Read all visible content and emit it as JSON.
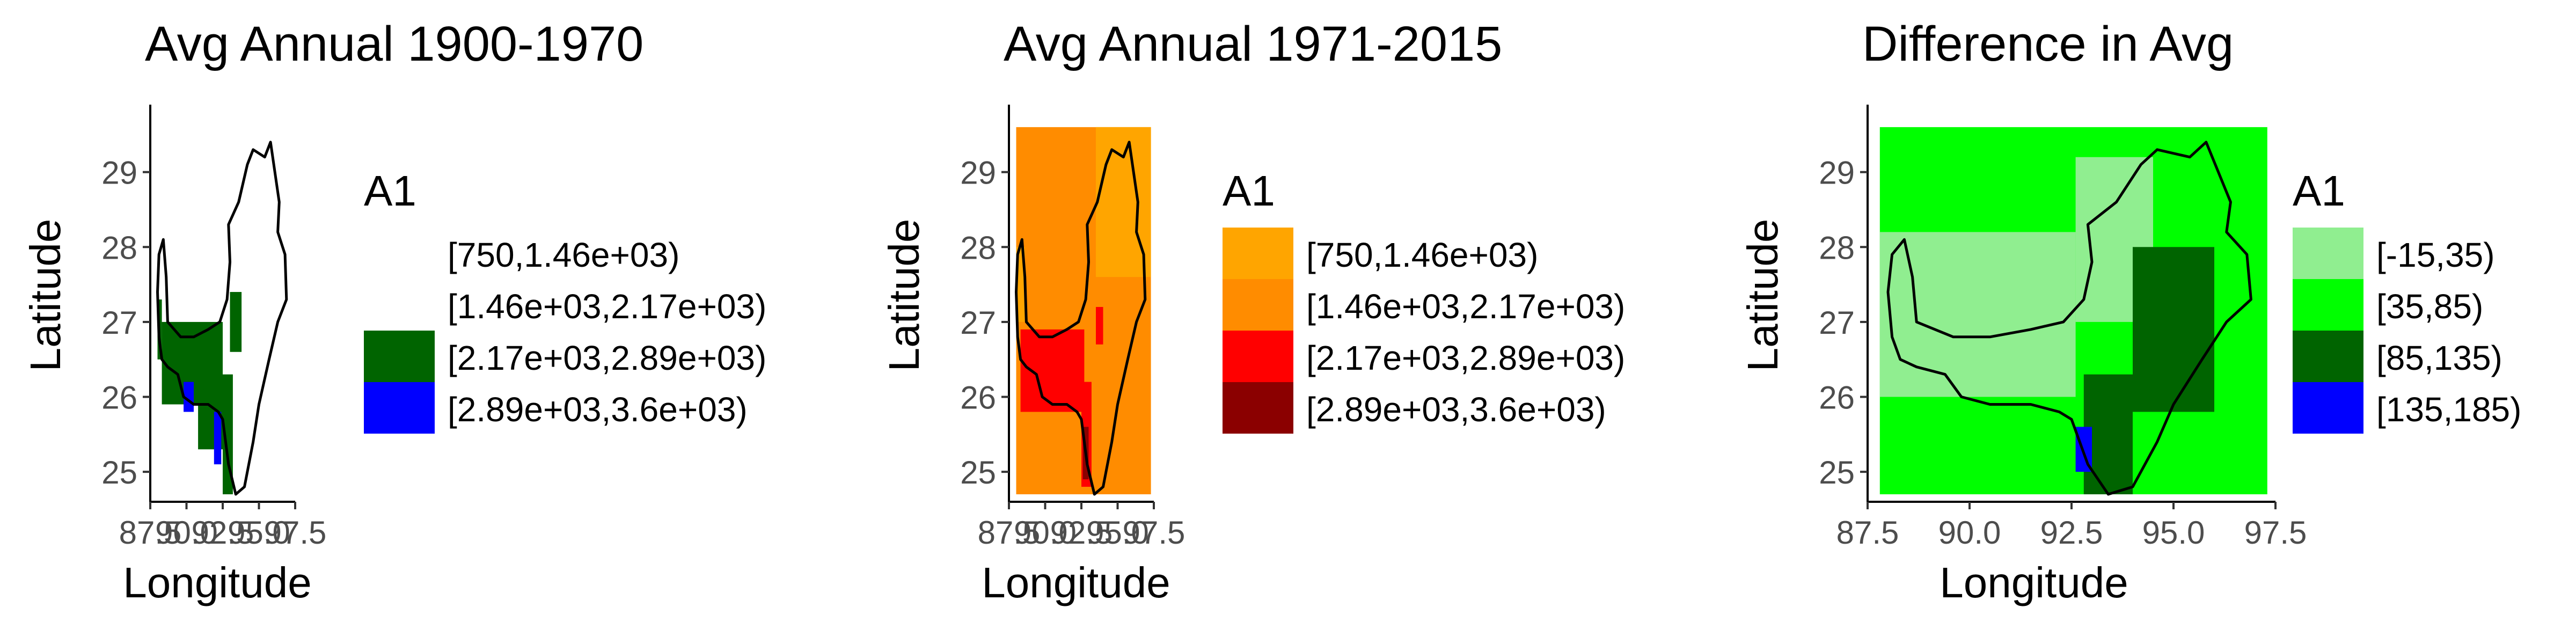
{
  "chart_data": [
    {
      "type": "heatmap",
      "title": "Avg Annual 1900-1970",
      "xlabel": "Longitude",
      "ylabel": "Latitude",
      "xticks": [
        "87.5",
        "90.0",
        "92.5",
        "95.0",
        "97.5"
      ],
      "yticks": [
        "25",
        "26",
        "27",
        "28",
        "29"
      ],
      "xlim": [
        87.5,
        97.5
      ],
      "ylim": [
        24.6,
        29.9
      ],
      "legend": {
        "title": "A1",
        "position": "right",
        "items": [
          {
            "label": "[750,1.46e+03)",
            "color": "#ffffff"
          },
          {
            "label": "[1.46e+03,2.17e+03)",
            "color": "#ffffff"
          },
          {
            "label": "[2.17e+03,2.89e+03)",
            "color": "#006400"
          },
          {
            "label": "[2.89e+03,3.6e+03)",
            "color": "#0000ff"
          }
        ]
      },
      "regions": [
        {
          "class": 2,
          "lon": [
            88.0,
            88.3
          ],
          "lat": [
            26.5,
            27.3
          ]
        },
        {
          "class": 2,
          "lon": [
            88.3,
            92.5
          ],
          "lat": [
            25.9,
            27.0
          ]
        },
        {
          "class": 2,
          "lon": [
            90.8,
            92.5
          ],
          "lat": [
            25.3,
            26.0
          ]
        },
        {
          "class": 2,
          "lon": [
            92.5,
            93.2
          ],
          "lat": [
            24.7,
            26.3
          ]
        },
        {
          "class": 2,
          "lon": [
            93.0,
            93.8
          ],
          "lat": [
            26.6,
            27.4
          ]
        },
        {
          "class": 2,
          "lon": [
            90.9,
            91.2
          ],
          "lat": [
            26.1,
            26.6
          ]
        },
        {
          "class": 3,
          "lon": [
            89.8,
            90.5
          ],
          "lat": [
            25.8,
            26.2
          ]
        },
        {
          "class": 3,
          "lon": [
            91.9,
            92.4
          ],
          "lat": [
            25.1,
            25.8
          ]
        }
      ]
    },
    {
      "type": "heatmap",
      "title": "Avg Annual 1971-2015",
      "xlabel": "Longitude",
      "ylabel": "Latitude",
      "xticks": [
        "87.5",
        "90.0",
        "92.5",
        "95.0",
        "97.5"
      ],
      "yticks": [
        "25",
        "26",
        "27",
        "28",
        "29"
      ],
      "xlim": [
        87.5,
        97.5
      ],
      "ylim": [
        24.6,
        29.9
      ],
      "legend": {
        "title": "A1",
        "position": "right",
        "items": [
          {
            "label": "[750,1.46e+03)",
            "color": "#ffa500"
          },
          {
            "label": "[1.46e+03,2.17e+03)",
            "color": "#ff8c00"
          },
          {
            "label": "[2.17e+03,2.89e+03)",
            "color": "#ff0000"
          },
          {
            "label": "[2.89e+03,3.6e+03)",
            "color": "#8b0000"
          }
        ]
      },
      "regions": [
        {
          "class": 1,
          "lon": [
            88.0,
            97.3
          ],
          "lat": [
            24.7,
            29.6
          ]
        },
        {
          "class": 0,
          "lon": [
            93.5,
            97.3
          ],
          "lat": [
            27.6,
            29.6
          ]
        },
        {
          "class": 0,
          "lon": [
            88.0,
            88.6
          ],
          "lat": [
            27.0,
            28.0
          ]
        },
        {
          "class": 2,
          "lon": [
            88.3,
            92.7
          ],
          "lat": [
            25.8,
            26.9
          ]
        },
        {
          "class": 2,
          "lon": [
            92.5,
            93.2
          ],
          "lat": [
            24.8,
            26.2
          ]
        },
        {
          "class": 2,
          "lon": [
            93.5,
            94.0
          ],
          "lat": [
            26.7,
            27.2
          ]
        },
        {
          "class": 3,
          "lon": [
            92.6,
            93.0
          ],
          "lat": [
            24.9,
            25.6
          ]
        }
      ]
    },
    {
      "type": "heatmap",
      "title": "Difference in Avg",
      "xlabel": "Longitude",
      "ylabel": "Latitude",
      "xticks": [
        "87.5",
        "90.0",
        "92.5",
        "95.0",
        "97.5"
      ],
      "yticks": [
        "25",
        "26",
        "27",
        "28",
        "29"
      ],
      "xlim": [
        87.5,
        97.5
      ],
      "ylim": [
        24.6,
        29.9
      ],
      "legend": {
        "title": "A1",
        "position": "right",
        "items": [
          {
            "label": "[-15,35)",
            "color": "#90ee90"
          },
          {
            "label": "[35,85)",
            "color": "#00ff00"
          },
          {
            "label": "[85,135)",
            "color": "#006400"
          },
          {
            "label": "[135,185)",
            "color": "#0000ff"
          }
        ]
      },
      "regions": [
        {
          "class": 1,
          "lon": [
            87.8,
            97.3
          ],
          "lat": [
            24.7,
            29.6
          ]
        },
        {
          "class": 0,
          "lon": [
            87.8,
            92.6
          ],
          "lat": [
            26.0,
            28.2
          ]
        },
        {
          "class": 0,
          "lon": [
            92.6,
            94.5
          ],
          "lat": [
            27.0,
            29.2
          ]
        },
        {
          "class": 2,
          "lon": [
            92.8,
            94.0
          ],
          "lat": [
            24.7,
            26.3
          ]
        },
        {
          "class": 2,
          "lon": [
            94.0,
            96.0
          ],
          "lat": [
            25.8,
            28.0
          ]
        },
        {
          "class": 3,
          "lon": [
            92.6,
            93.0
          ],
          "lat": [
            25.0,
            25.6
          ]
        }
      ]
    }
  ]
}
